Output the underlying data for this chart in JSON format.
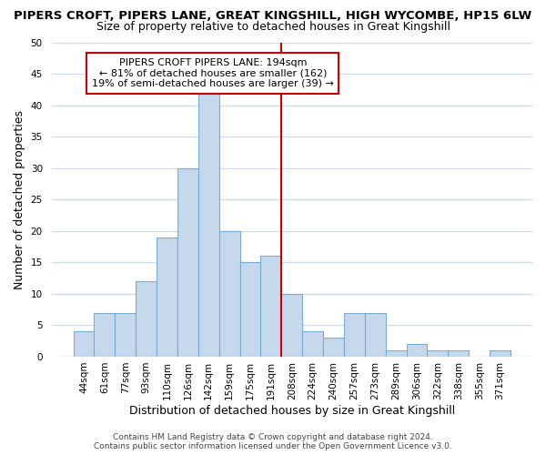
{
  "title": "PIPERS CROFT, PIPERS LANE, GREAT KINGSHILL, HIGH WYCOMBE, HP15 6LW",
  "subtitle": "Size of property relative to detached houses in Great Kingshill",
  "xlabel": "Distribution of detached houses by size in Great Kingshill",
  "ylabel": "Number of detached properties",
  "bar_labels": [
    "44sqm",
    "61sqm",
    "77sqm",
    "93sqm",
    "110sqm",
    "126sqm",
    "142sqm",
    "159sqm",
    "175sqm",
    "191sqm",
    "208sqm",
    "224sqm",
    "240sqm",
    "257sqm",
    "273sqm",
    "289sqm",
    "306sqm",
    "322sqm",
    "338sqm",
    "355sqm",
    "371sqm"
  ],
  "bar_heights": [
    4,
    7,
    7,
    12,
    19,
    30,
    42,
    20,
    15,
    16,
    10,
    4,
    3,
    7,
    7,
    1,
    2,
    1,
    1,
    0,
    1
  ],
  "bar_color": "#c5d8ec",
  "bar_edge_color": "#7aadd4",
  "vline_color": "#cc0000",
  "property_line_label": "PIPERS CROFT PIPERS LANE: 194sqm",
  "annotation_line1": "← 81% of detached houses are smaller (162)",
  "annotation_line2": "19% of semi-detached houses are larger (39) →",
  "annotation_box_color": "#cc0000",
  "ylim": [
    0,
    50
  ],
  "yticks": [
    0,
    5,
    10,
    15,
    20,
    25,
    30,
    35,
    40,
    45,
    50
  ],
  "footer": "Contains HM Land Registry data © Crown copyright and database right 2024.\nContains public sector information licensed under the Open Government Licence v3.0.",
  "bg_color": "#ffffff",
  "plot_bg_color": "#ffffff",
  "grid_color": "#d0dce8",
  "title_fontsize": 9.5,
  "subtitle_fontsize": 9,
  "axis_label_fontsize": 9,
  "tick_fontsize": 7.5,
  "footer_fontsize": 6.5,
  "annotation_fontsize": 8
}
